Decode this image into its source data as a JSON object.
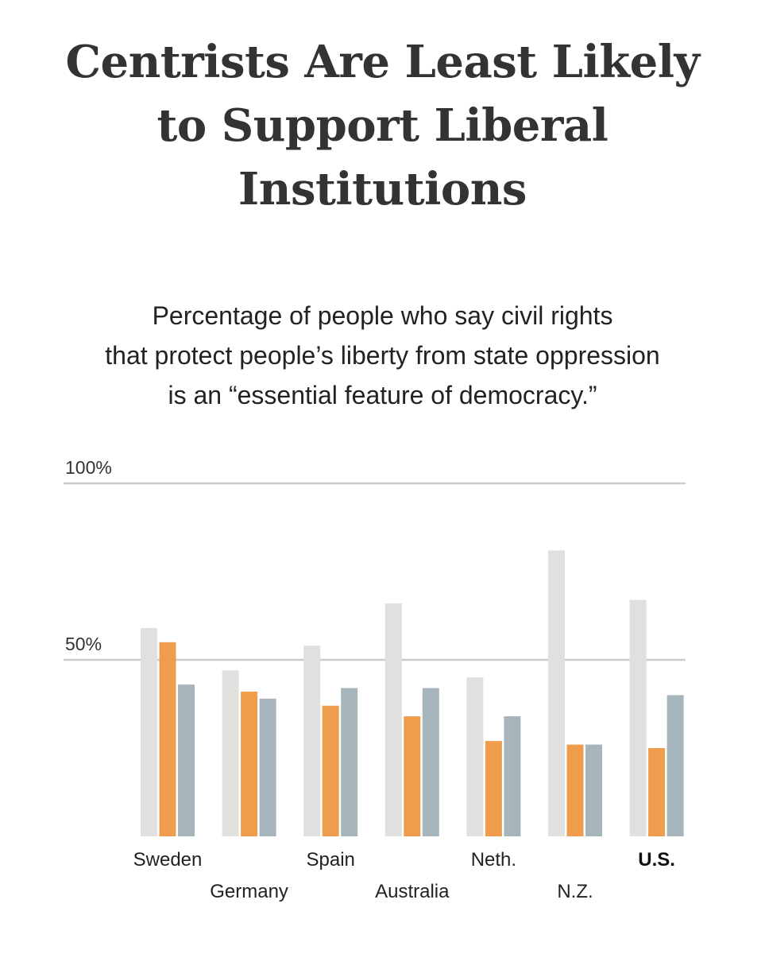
{
  "title_lines": [
    "Centrists Are Least Likely",
    "to Support Liberal",
    "Institutions"
  ],
  "subtitle_lines": [
    "Percentage of people who say civil rights",
    "that protect people’s liberty from state oppression",
    "is an “essential feature of democracy.”"
  ],
  "colors": {
    "series_1": "#e0e0de",
    "series_2": "#ef9c4c",
    "series_3": "#a6b4bb",
    "gridline": "#cccccc"
  },
  "chart_data": {
    "type": "bar",
    "categories": [
      "Sweden",
      "Germany",
      "Spain",
      "Australia",
      "Neth.",
      "N.Z.",
      "U.S."
    ],
    "highlight_category": "U.S.",
    "series": [
      {
        "values": [
          59,
          47,
          54,
          66,
          45,
          81,
          67
        ]
      },
      {
        "values": [
          55,
          41,
          37,
          34,
          27,
          26,
          25
        ]
      },
      {
        "values": [
          43,
          39,
          42,
          42,
          34,
          26,
          40
        ]
      }
    ],
    "ylim": [
      0,
      100
    ],
    "yticks": [
      {
        "value": 100,
        "label": "100%"
      },
      {
        "value": 50,
        "label": "50%"
      }
    ],
    "grid": true
  }
}
